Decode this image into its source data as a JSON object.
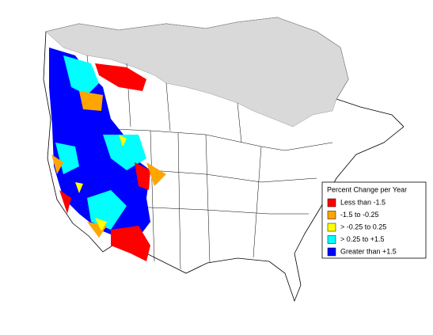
{
  "legend": {
    "title": "Percent Change per Year",
    "items": [
      {
        "label": "Less than -1.5",
        "color": "#ff0000"
      },
      {
        "label": "-1.5 to -0.25",
        "color": "#ffa500"
      },
      {
        "label": "> -0.25 to 0.25",
        "color": "#ffff00"
      },
      {
        "label": "> 0.25 to +1.5",
        "color": "#00ffff"
      },
      {
        "label": "Greater than +1.5",
        "color": "#0000ff"
      }
    ]
  }
}
